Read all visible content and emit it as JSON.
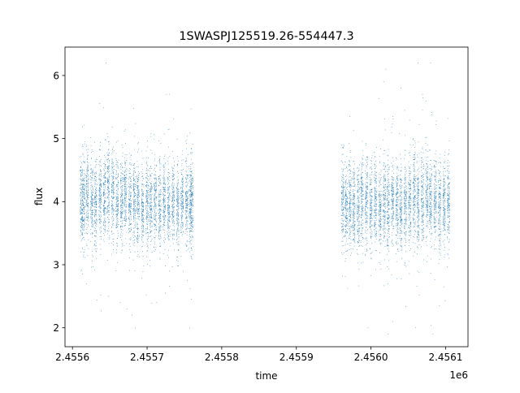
{
  "chart_data": {
    "type": "scatter",
    "title": "1SWASPJ125519.26-554447.3",
    "xlabel": "time",
    "ylabel": "flux",
    "x_offset_label": "1e6",
    "xlim": [
      2.45559,
      2.45613
    ],
    "ylim": [
      1.7,
      6.45
    ],
    "xticks": [
      2.4556,
      2.4557,
      2.4558,
      2.4559,
      2.456,
      2.4561
    ],
    "xtick_labels": [
      "2.4556",
      "2.4557",
      "2.4558",
      "2.4559",
      "2.4560",
      "2.4561"
    ],
    "yticks": [
      2,
      3,
      4,
      5,
      6
    ],
    "ytick_labels": [
      "2",
      "3",
      "4",
      "5",
      "6"
    ],
    "grid": false,
    "legend": "none",
    "marker_color": "#1f77b4",
    "series": [
      {
        "nights": [
          [
            2.455612,
            4.0
          ],
          [
            2.455615,
            4.0
          ],
          [
            2.45562,
            4.1
          ],
          [
            2.455626,
            4.0
          ],
          [
            2.455631,
            3.9
          ],
          [
            2.455637,
            4.1
          ],
          [
            2.455643,
            4.0
          ],
          [
            2.455648,
            4.2
          ],
          [
            2.455654,
            4.1
          ],
          [
            2.45566,
            4.0
          ],
          [
            2.455666,
            4.0
          ],
          [
            2.455671,
            4.1
          ],
          [
            2.455677,
            3.9
          ],
          [
            2.455683,
            4.0
          ],
          [
            2.455688,
            4.0
          ],
          [
            2.455694,
            3.9
          ],
          [
            2.4557,
            4.0
          ],
          [
            2.455705,
            3.9
          ],
          [
            2.455711,
            4.0
          ],
          [
            2.455717,
            3.9
          ],
          [
            2.455723,
            4.0
          ],
          [
            2.455729,
            3.9
          ],
          [
            2.455735,
            4.0
          ],
          [
            2.455741,
            3.9
          ],
          [
            2.455747,
            4.0
          ],
          [
            2.455753,
            4.0
          ],
          [
            2.455758,
            3.9
          ],
          [
            2.45576,
            4.0
          ],
          [
            2.455962,
            4.0
          ],
          [
            2.455967,
            3.9
          ],
          [
            2.455972,
            4.0
          ],
          [
            2.455977,
            3.9
          ],
          [
            2.455983,
            3.9
          ],
          [
            2.455988,
            4.0
          ],
          [
            2.455994,
            4.0
          ],
          [
            2.456,
            3.9
          ],
          [
            2.456006,
            4.0
          ],
          [
            2.456012,
            3.9
          ],
          [
            2.456018,
            4.0
          ],
          [
            2.456023,
            3.9
          ],
          [
            2.456029,
            4.0
          ],
          [
            2.456035,
            3.9
          ],
          [
            2.45604,
            3.9
          ],
          [
            2.456046,
            4.0
          ],
          [
            2.456052,
            4.0
          ],
          [
            2.456058,
            4.1
          ],
          [
            2.456063,
            4.0
          ],
          [
            2.456069,
            4.0
          ],
          [
            2.456075,
            4.1
          ],
          [
            2.45608,
            4.0
          ],
          [
            2.456086,
            4.0
          ],
          [
            2.456092,
            3.9
          ],
          [
            2.456098,
            4.0
          ],
          [
            2.456104,
            4.0
          ]
        ],
        "outliers": [
          [
            2.455619,
            2.7
          ],
          [
            2.455645,
            6.2
          ],
          [
            2.455648,
            2.5
          ],
          [
            2.455664,
            2.4
          ],
          [
            2.455673,
            2.3
          ],
          [
            2.45568,
            2.2
          ],
          [
            2.455684,
            2.0
          ],
          [
            2.455713,
            2.4
          ],
          [
            2.455726,
            5.7
          ],
          [
            2.455757,
            2.0
          ],
          [
            2.455996,
            2.0
          ],
          [
            2.456017,
            5.9
          ],
          [
            2.45602,
            6.1
          ],
          [
            2.456023,
            1.9
          ],
          [
            2.456029,
            2.1
          ],
          [
            2.45604,
            5.8
          ],
          [
            2.45606,
            2.0
          ],
          [
            2.456063,
            6.2
          ],
          [
            2.456069,
            5.7
          ],
          [
            2.45608,
            6.2
          ],
          [
            2.456083,
            1.9
          ]
        ]
      }
    ]
  }
}
